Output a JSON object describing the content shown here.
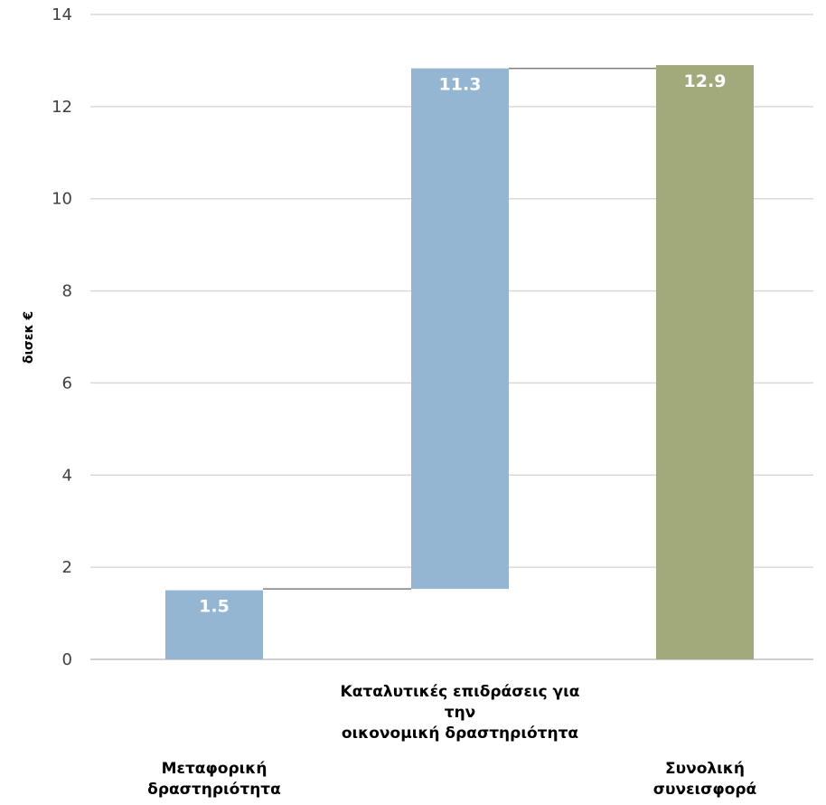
{
  "chart_data": {
    "type": "bar",
    "subtype": "waterfall",
    "title": "",
    "xlabel": "",
    "ylabel": "δισεκ €",
    "ylim": [
      0,
      14
    ],
    "yticks": [
      0,
      2,
      4,
      6,
      8,
      10,
      12,
      14
    ],
    "grid": true,
    "legend": "none",
    "categories": [
      [
        "Μεταφορική",
        "δραστηριότητα"
      ],
      [
        "Καταλυτικές επιδράσεις για",
        "την",
        "οικονομική δραστηριότητα"
      ],
      [
        "Συνολική",
        "συνεισφορά"
      ]
    ],
    "bars": [
      {
        "value": 1.5,
        "base": 0,
        "label": "1.5",
        "color": "#95b6d2"
      },
      {
        "value": 11.3,
        "base": 1.53,
        "label": "11.3",
        "color": "#95b6d2"
      },
      {
        "value": 12.9,
        "base": 0,
        "label": "12.9",
        "color": "#a2aa7c"
      }
    ],
    "colors": {
      "grid": "#d9d9d9",
      "connector": "#7f7f7f",
      "axis": "#bfbfbf"
    }
  }
}
